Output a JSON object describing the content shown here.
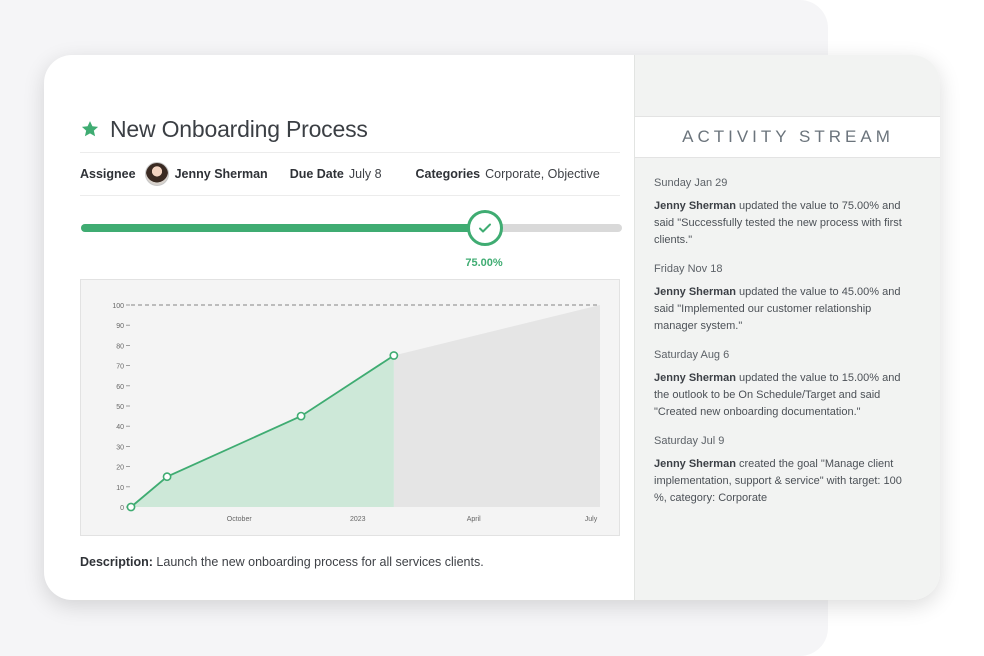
{
  "goal": {
    "title": "New Onboarding Process",
    "icon": "star-icon",
    "assignee_label": "Assignee",
    "assignee_name": "Jenny Sherman",
    "due_label": "Due Date",
    "due_value": "July 8",
    "categories_label": "Categories",
    "categories_value": "Corporate, Objective",
    "progress_fraction": 0.75,
    "progress_text": "75.00%",
    "description_label": "Description:",
    "description_text": "Launch the new onboarding process for all services clients."
  },
  "colors": {
    "accent": "#3fac72",
    "area_fill": "#cde8d8",
    "forecast_fill": "#e5e5e5",
    "track": "#d9d9d9"
  },
  "chart_data": {
    "type": "area",
    "title": "",
    "xlabel": "",
    "ylabel": "",
    "ylim": [
      0,
      100
    ],
    "yticks": [
      0,
      10,
      20,
      30,
      40,
      50,
      60,
      70,
      80,
      90,
      100
    ],
    "xticks": [
      "October",
      "2023",
      "April",
      "July"
    ],
    "xlim": [
      "2022-07-09",
      "2023-07-08"
    ],
    "xtick_dates": [
      "2022-10-01",
      "2023-01-01",
      "2023-04-01",
      "2023-07-01"
    ],
    "target": 100,
    "grid": false,
    "series": [
      {
        "points": [
          {
            "x": "2022-07-09",
            "y": 0
          },
          {
            "x": "2022-08-06",
            "y": 15
          },
          {
            "x": "2022-11-18",
            "y": 45
          },
          {
            "x": "2023-01-29",
            "y": 75
          }
        ]
      }
    ],
    "forecast": {
      "from": {
        "x": "2023-01-29",
        "y": 75
      },
      "to": {
        "x": "2023-07-08",
        "y": 100
      }
    }
  },
  "activity": {
    "header": "ACTIVITY STREAM",
    "items": [
      {
        "date": "Sunday Jan 29",
        "user": "Jenny Sherman",
        "text": "updated the value to 75.00% and said \"Successfully tested the new process with first clients.\""
      },
      {
        "date": "Friday Nov 18",
        "user": "Jenny Sherman",
        "text": "updated the value to 45.00% and said \"Implemented our customer relationship manager system.\""
      },
      {
        "date": "Saturday Aug 6",
        "user": "Jenny Sherman",
        "text": "updated the value to 15.00% and the outlook to be On Schedule/Target and said \"Created new onboarding documentation.\""
      },
      {
        "date": "Saturday Jul 9",
        "user": "Jenny Sherman",
        "text": "created the goal \"Manage client implementation, support & service\" with target: 100 %, category: Corporate"
      }
    ]
  }
}
